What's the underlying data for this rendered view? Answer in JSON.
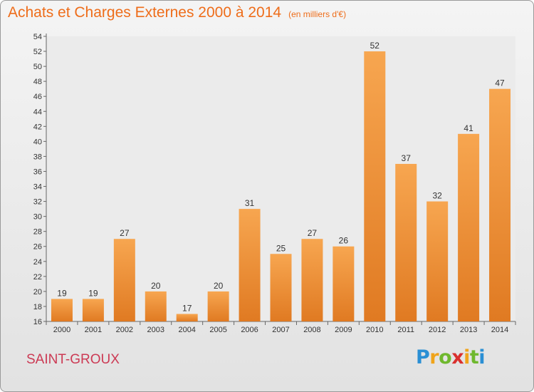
{
  "header": {
    "title": "Achats et Charges Externes 2000 à 2014",
    "subtitle": "(en milliers d'€)"
  },
  "commune": "SAINT-GROUX",
  "logo": {
    "text": "Proxiti",
    "letters": [
      "P",
      "r",
      "o",
      "x",
      "i",
      "t",
      "i"
    ]
  },
  "colors": {
    "bar_light": "#f7a650",
    "bar_dark": "#e07a22",
    "title": "#ee6d1a",
    "commune": "#cc3a54"
  },
  "chart_data": {
    "type": "bar",
    "title": "Achats et Charges Externes 2000 à 2014",
    "subtitle": "(en milliers d'€)",
    "xlabel": "",
    "ylabel": "",
    "categories": [
      "2000",
      "2001",
      "2002",
      "2003",
      "2004",
      "2005",
      "2006",
      "2007",
      "2008",
      "2009",
      "2010",
      "2011",
      "2012",
      "2013",
      "2014"
    ],
    "values": [
      19,
      19,
      27,
      20,
      17,
      20,
      31,
      25,
      27,
      26,
      52,
      37,
      32,
      41,
      47
    ],
    "ylim": [
      16,
      54
    ],
    "yticks": [
      16,
      18,
      20,
      22,
      24,
      26,
      28,
      30,
      32,
      34,
      36,
      38,
      40,
      42,
      44,
      46,
      48,
      50,
      52,
      54
    ],
    "grid": false,
    "data_labels": true
  }
}
